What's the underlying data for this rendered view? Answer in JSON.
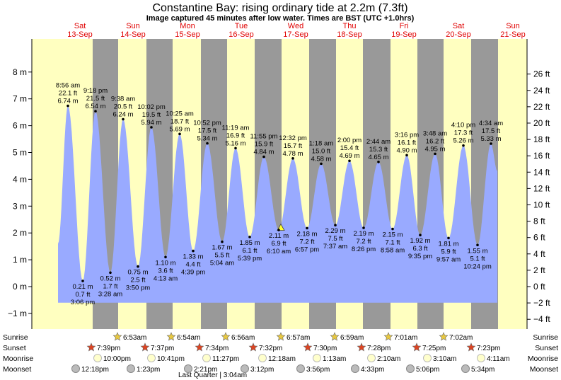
{
  "title": "Constantine Bay: rising  ordinary tide at 2.2m (7.3ft)",
  "subtitle": "Image captured 45 minutes after low water. Times are BST (UTC +1.0hrs)",
  "days": [
    {
      "dow": "Sat",
      "date": "13-Sep"
    },
    {
      "dow": "Sun",
      "date": "14-Sep"
    },
    {
      "dow": "Mon",
      "date": "15-Sep"
    },
    {
      "dow": "Tue",
      "date": "16-Sep"
    },
    {
      "dow": "Wed",
      "date": "17-Sep"
    },
    {
      "dow": "Thu",
      "date": "18-Sep"
    },
    {
      "dow": "Fri",
      "date": "19-Sep"
    },
    {
      "dow": "Sat",
      "date": "20-Sep"
    },
    {
      "dow": "Sun",
      "date": "21-Sep"
    }
  ],
  "row_labels": {
    "sunrise": "Sunrise",
    "sunset": "Sunset",
    "moonrise": "Moonrise",
    "moonset": "Moonset"
  },
  "sunrise": [
    "6:53am",
    "6:54am",
    "6:56am",
    "6:57am",
    "6:59am",
    "7:01am",
    "7:02am"
  ],
  "sunset": [
    "7:39pm",
    "7:37pm",
    "7:34pm",
    "7:32pm",
    "7:30pm",
    "7:28pm",
    "7:25pm",
    "7:23pm"
  ],
  "moonrise": [
    "10:00pm",
    "10:41pm",
    "11:27pm",
    "12:18am",
    "1:13am",
    "2:10am",
    "3:10am",
    "4:11am"
  ],
  "moonset": [
    "12:18pm",
    "1:23pm",
    "2:21pm",
    "3:12pm",
    "3:56pm",
    "4:33pm",
    "5:06pm",
    "5:34pm"
  ],
  "moon_phase": "Last Quarter | 3:04am",
  "colors": {
    "day": "#ffffc0",
    "night": "#999999",
    "water": "#99aaff",
    "day_text": "#e00000"
  },
  "chart_data": {
    "type": "area",
    "title": "Constantine Bay: rising  ordinary tide at 2.2m (7.3ft)",
    "left_axis": {
      "unit": "m",
      "ylim": [
        -1.2,
        8.4
      ],
      "ticks": [
        -1,
        0,
        1,
        2,
        3,
        4,
        5,
        6,
        7,
        8
      ]
    },
    "right_axis": {
      "unit": "ft",
      "ticks": [
        -4,
        -2,
        0,
        2,
        4,
        6,
        8,
        10,
        12,
        14,
        16,
        18,
        20,
        22,
        24,
        26
      ]
    },
    "current_level_m": 2.2,
    "high_tides": [
      {
        "time": "8:56 am",
        "ft": "22.1 ft",
        "m": 6.74,
        "label": "6.74 m"
      },
      {
        "time": "9:18 pm",
        "ft": "21.5 ft",
        "m": 6.54,
        "label": "6.54 m"
      },
      {
        "time": "9:38 am",
        "ft": "20.5 ft",
        "m": 6.24,
        "label": "6.24 m"
      },
      {
        "time": "10:02 pm",
        "ft": "19.5 ft",
        "m": 5.94,
        "label": "5.94 m"
      },
      {
        "time": "10:25 am",
        "ft": "18.7 ft",
        "m": 5.69,
        "label": "5.69 m"
      },
      {
        "time": "10:52 pm",
        "ft": "17.5 ft",
        "m": 5.34,
        "label": "5.34 m"
      },
      {
        "time": "11:19 am",
        "ft": "16.9 ft",
        "m": 5.16,
        "label": "5.16 m"
      },
      {
        "time": "11:55 pm",
        "ft": "15.9 ft",
        "m": 4.84,
        "label": "4.84 m"
      },
      {
        "time": "12:32 pm",
        "ft": "15.7 ft",
        "m": 4.78,
        "label": "4.78 m"
      },
      {
        "time": "1:18 am",
        "ft": "15.0 ft",
        "m": 4.58,
        "label": "4.58 m"
      },
      {
        "time": "2:00 pm",
        "ft": "15.4 ft",
        "m": 4.69,
        "label": "4.69 m"
      },
      {
        "time": "2:44 am",
        "ft": "15.3 ft",
        "m": 4.65,
        "label": "4.65 m"
      },
      {
        "time": "3:16 pm",
        "ft": "16.1 ft",
        "m": 4.9,
        "label": "4.90 m"
      },
      {
        "time": "3:48 am",
        "ft": "16.2 ft",
        "m": 4.95,
        "label": "4.95 m"
      },
      {
        "time": "4:10 pm",
        "ft": "17.3 ft",
        "m": 5.26,
        "label": "5.26 m"
      },
      {
        "time": "4:34 am",
        "ft": "17.5 ft",
        "m": 5.33,
        "label": "5.33 m"
      }
    ],
    "low_tides": [
      {
        "m": 0.21,
        "label": "0.21 m",
        "ft": "0.7 ft",
        "time": "3:06 pm"
      },
      {
        "m": 0.52,
        "label": "0.52 m",
        "ft": "1.7 ft",
        "time": "3:28 am"
      },
      {
        "m": 0.75,
        "label": "0.75 m",
        "ft": "2.5 ft",
        "time": "3:50 pm"
      },
      {
        "m": 1.1,
        "label": "1.10 m",
        "ft": "3.6 ft",
        "time": "4:13 am"
      },
      {
        "m": 1.33,
        "label": "1.33 m",
        "ft": "4.4 ft",
        "time": "4:39 pm"
      },
      {
        "m": 1.67,
        "label": "1.67 m",
        "ft": "5.5 ft",
        "time": "5:04 am"
      },
      {
        "m": 1.85,
        "label": "1.85 m",
        "ft": "6.1 ft",
        "time": "5:39 pm"
      },
      {
        "m": 2.11,
        "label": "2.11 m",
        "ft": "6.9 ft",
        "time": "6:10 am"
      },
      {
        "m": 2.18,
        "label": "2.18 m",
        "ft": "7.2 ft",
        "time": "6:57 pm"
      },
      {
        "m": 2.29,
        "label": "2.29 m",
        "ft": "7.5 ft",
        "time": "7:37 am"
      },
      {
        "m": 2.19,
        "label": "2.19 m",
        "ft": "7.2 ft",
        "time": "8:26 pm"
      },
      {
        "m": 2.15,
        "label": "2.15 m",
        "ft": "7.1 ft",
        "time": "8:58 am"
      },
      {
        "m": 1.92,
        "label": "1.92 m",
        "ft": "6.3 ft",
        "time": "9:35 pm"
      },
      {
        "m": 1.81,
        "label": "1.81 m",
        "ft": "5.9 ft",
        "time": "9:57 am"
      },
      {
        "m": 1.55,
        "label": "1.55 m",
        "ft": "5.1 ft",
        "time": "10:24 pm"
      }
    ]
  }
}
